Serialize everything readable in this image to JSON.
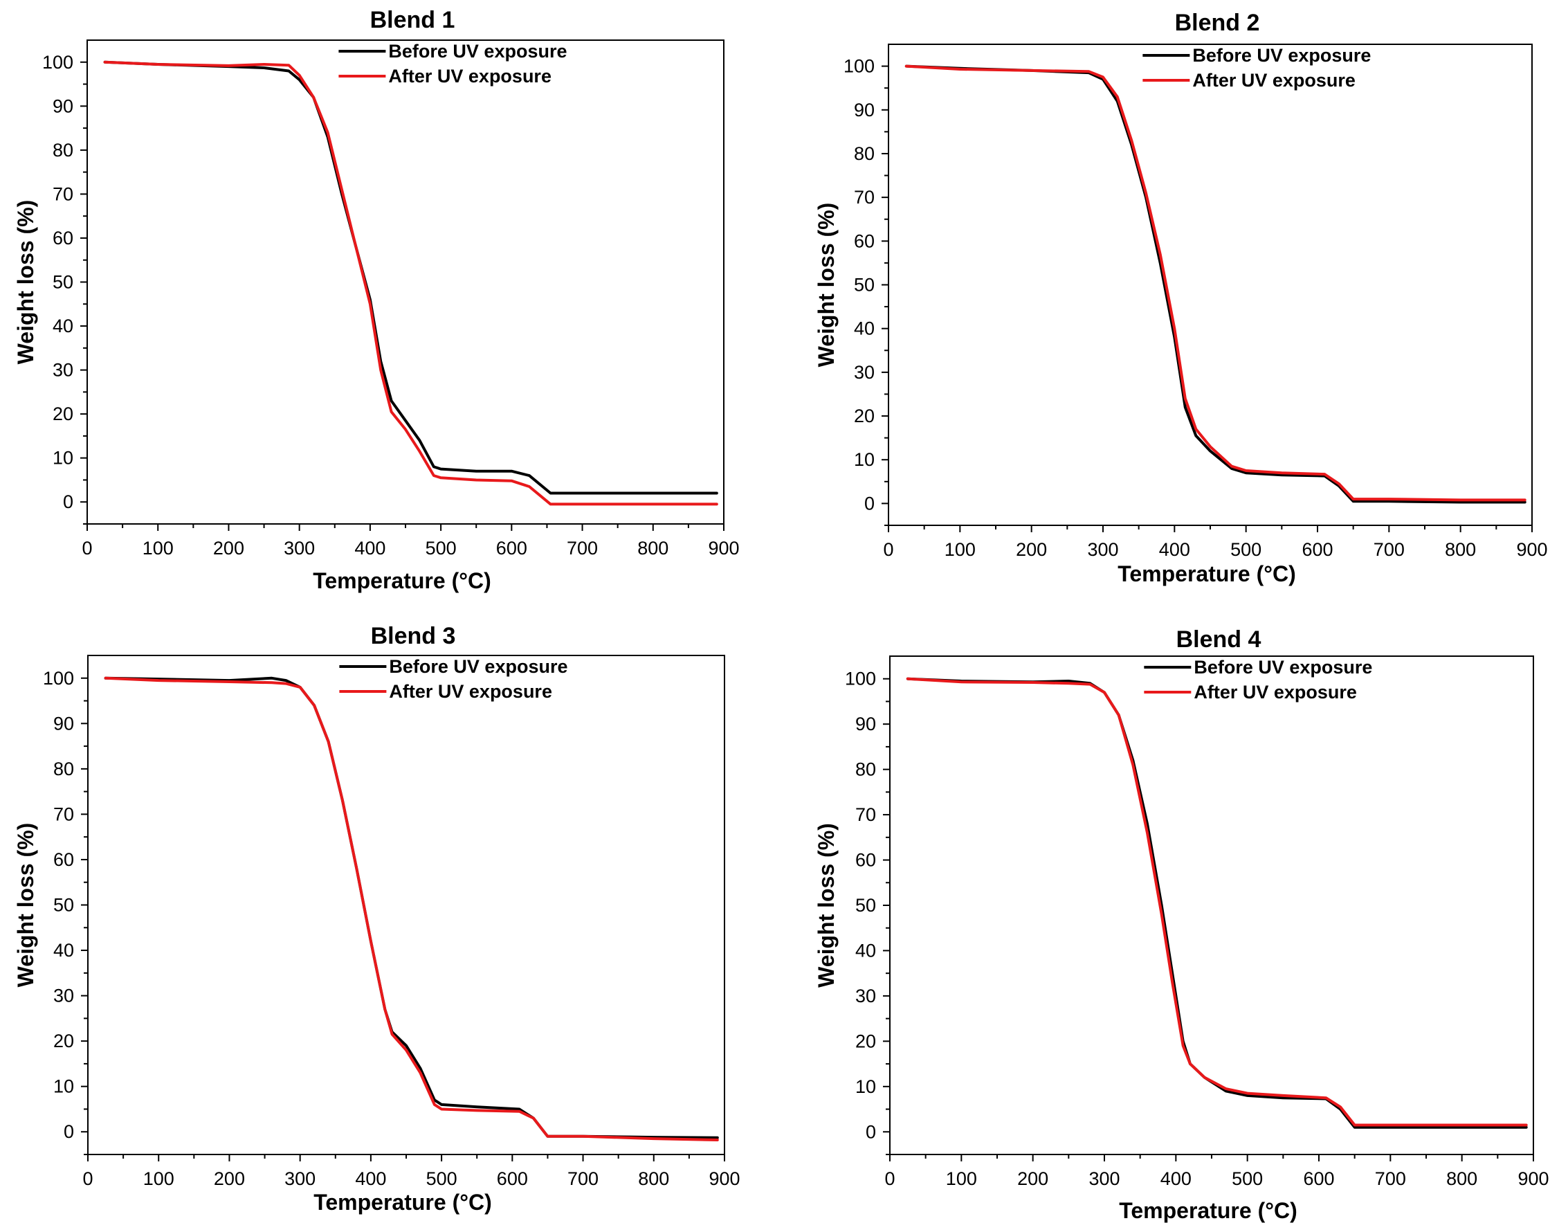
{
  "chart_data": [
    {
      "type": "line",
      "title": "Blend 1",
      "xlabel": "Temperature (°C)",
      "ylabel": "Weight loss (%)",
      "xlim": [
        0,
        900
      ],
      "ylim": [
        -5,
        105
      ],
      "xticks": [
        0,
        100,
        200,
        300,
        400,
        500,
        600,
        700,
        800,
        900
      ],
      "yticks": [
        0,
        10,
        20,
        30,
        40,
        50,
        60,
        70,
        80,
        90,
        100
      ],
      "legend": "top-right",
      "series": [
        {
          "name": "Before UV exposure",
          "color": "#000000",
          "x": [
            25,
            100,
            200,
            250,
            285,
            300,
            320,
            340,
            360,
            380,
            400,
            415,
            430,
            450,
            470,
            490,
            500,
            550,
            600,
            625,
            655,
            700,
            800,
            890
          ],
          "y": [
            100,
            99.5,
            99,
            98.7,
            98,
            96,
            92,
            83,
            70,
            58,
            46,
            32,
            23,
            18.5,
            14,
            8,
            7.5,
            7,
            7,
            6,
            2,
            2,
            2,
            2
          ]
        },
        {
          "name": "After UV exposure",
          "color": "#e8191b",
          "x": [
            25,
            100,
            200,
            250,
            285,
            300,
            320,
            340,
            360,
            380,
            400,
            415,
            430,
            450,
            470,
            490,
            500,
            550,
            600,
            625,
            655,
            700,
            800,
            890
          ],
          "y": [
            100,
            99.5,
            99.2,
            99.5,
            99.3,
            97,
            92,
            84,
            71,
            58,
            45,
            30,
            20.5,
            16.5,
            11.5,
            6,
            5.5,
            5,
            4.8,
            3.5,
            -0.5,
            -0.5,
            -0.5,
            -0.5
          ]
        }
      ]
    },
    {
      "type": "line",
      "title": "Blend 2",
      "xlabel": "Temperature (°C)",
      "ylabel": "Weight loss (%)",
      "xlim": [
        0,
        900
      ],
      "ylim": [
        -5,
        105
      ],
      "xticks": [
        0,
        100,
        200,
        300,
        400,
        500,
        600,
        700,
        800,
        900
      ],
      "yticks": [
        0,
        10,
        20,
        30,
        40,
        50,
        60,
        70,
        80,
        90,
        100
      ],
      "legend": "top-right",
      "series": [
        {
          "name": "Before UV exposure",
          "color": "#000000",
          "x": [
            25,
            100,
            200,
            280,
            300,
            320,
            340,
            360,
            380,
            400,
            415,
            430,
            450,
            480,
            500,
            550,
            610,
            630,
            650,
            700,
            800,
            890
          ],
          "y": [
            100,
            99.5,
            99,
            98.5,
            97,
            92,
            82,
            70,
            55,
            38,
            22,
            15.5,
            12,
            8,
            7,
            6.5,
            6.3,
            4,
            0.5,
            0.5,
            0.3,
            0.3
          ]
        },
        {
          "name": "After UV exposure",
          "color": "#e8191b",
          "x": [
            25,
            100,
            200,
            280,
            300,
            320,
            340,
            360,
            380,
            400,
            415,
            430,
            450,
            480,
            500,
            550,
            610,
            630,
            650,
            700,
            800,
            890
          ],
          "y": [
            100,
            99.3,
            99,
            98.8,
            97.5,
            93,
            83,
            71,
            57,
            40,
            24,
            17,
            13,
            8.5,
            7.5,
            7,
            6.7,
            4.5,
            1,
            1,
            0.8,
            0.8
          ]
        }
      ]
    },
    {
      "type": "line",
      "title": "Blend 3",
      "xlabel": "Temperature (°C)",
      "ylabel": "Weight loss (%)",
      "xlim": [
        0,
        900
      ],
      "ylim": [
        -5,
        105
      ],
      "xticks": [
        0,
        100,
        200,
        300,
        400,
        500,
        600,
        700,
        800,
        900
      ],
      "yticks": [
        0,
        10,
        20,
        30,
        40,
        50,
        60,
        70,
        80,
        90,
        100
      ],
      "legend": "top-right",
      "series": [
        {
          "name": "Before UV exposure",
          "color": "#000000",
          "x": [
            25,
            100,
            200,
            260,
            280,
            300,
            320,
            340,
            360,
            380,
            400,
            420,
            430,
            450,
            470,
            490,
            500,
            550,
            610,
            630,
            650,
            700,
            800,
            890
          ],
          "y": [
            100,
            99.8,
            99.5,
            100,
            99.5,
            98,
            94,
            86,
            73,
            58,
            42,
            27,
            22,
            19,
            14,
            7,
            6,
            5.5,
            5,
            3,
            -1,
            -1,
            -1.2,
            -1.3
          ]
        },
        {
          "name": "After UV exposure",
          "color": "#e8191b",
          "x": [
            25,
            100,
            200,
            260,
            280,
            300,
            320,
            340,
            360,
            380,
            400,
            420,
            430,
            450,
            470,
            490,
            500,
            550,
            610,
            630,
            650,
            700,
            800,
            890
          ],
          "y": [
            100,
            99.5,
            99.2,
            99,
            98.8,
            98,
            94,
            86,
            73,
            58,
            42,
            27,
            21.5,
            18,
            13,
            6,
            5,
            4.7,
            4.5,
            3,
            -1,
            -1,
            -1.5,
            -1.8
          ]
        }
      ]
    },
    {
      "type": "line",
      "title": "Blend 4",
      "xlabel": "Temperature (°C)",
      "ylabel": "Weight loss (%)",
      "xlim": [
        0,
        900
      ],
      "ylim": [
        -5,
        105
      ],
      "xticks": [
        0,
        100,
        200,
        300,
        400,
        500,
        600,
        700,
        800,
        900
      ],
      "yticks": [
        0,
        10,
        20,
        30,
        40,
        50,
        60,
        70,
        80,
        90,
        100
      ],
      "legend": "top-right",
      "series": [
        {
          "name": "Before UV exposure",
          "color": "#000000",
          "x": [
            25,
            100,
            200,
            250,
            280,
            300,
            320,
            340,
            360,
            380,
            395,
            410,
            420,
            440,
            470,
            500,
            550,
            610,
            630,
            650,
            700,
            800,
            890
          ],
          "y": [
            100,
            99.5,
            99.3,
            99.5,
            99,
            97,
            92,
            82,
            68,
            50,
            35,
            20,
            15,
            12,
            9,
            8,
            7.5,
            7.3,
            5,
            1,
            1,
            1,
            1
          ]
        },
        {
          "name": "After UV exposure",
          "color": "#e8191b",
          "x": [
            25,
            100,
            200,
            250,
            280,
            300,
            320,
            340,
            360,
            380,
            395,
            410,
            420,
            440,
            470,
            500,
            550,
            610,
            630,
            650,
            700,
            800,
            890
          ],
          "y": [
            100,
            99.3,
            99.2,
            99,
            98.8,
            97,
            92,
            81,
            66,
            48,
            33,
            19,
            15,
            12,
            9.5,
            8.5,
            8,
            7.5,
            5.5,
            1.5,
            1.5,
            1.5,
            1.5
          ]
        }
      ]
    }
  ]
}
